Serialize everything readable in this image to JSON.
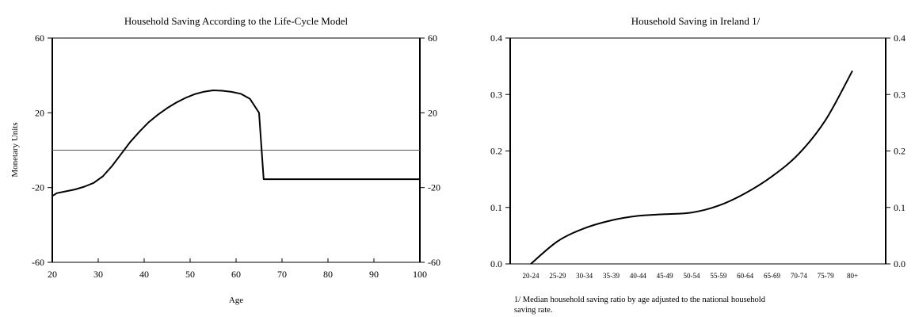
{
  "chart_data": [
    {
      "type": "line",
      "title": "Household Saving According to the Life-Cycle Model",
      "xlabel": "Age",
      "ylabel": "Monetary Units",
      "xlim": [
        20,
        100
      ],
      "ylim": [
        -60,
        60
      ],
      "x_ticks": [
        20,
        30,
        40,
        50,
        60,
        70,
        80,
        90,
        100
      ],
      "y_ticks": [
        -60,
        -20,
        20,
        60
      ],
      "y_tick_labels": [
        "-60",
        "-20",
        "20",
        "60"
      ],
      "reference_line_y": 0,
      "grid": false,
      "series": [
        {
          "x": [
            20,
            21,
            23,
            25,
            27,
            29,
            31,
            33,
            35,
            37,
            39,
            41,
            43,
            45,
            47,
            49,
            51,
            53,
            55,
            57,
            59,
            61,
            63,
            65,
            66,
            67,
            70,
            80,
            90,
            100
          ],
          "y": [
            -24.5,
            -23,
            -22,
            -21,
            -19.5,
            -17.5,
            -14,
            -8.5,
            -2,
            4.5,
            10,
            15,
            19,
            22.5,
            25.5,
            28,
            30,
            31.3,
            32,
            31.8,
            31.2,
            30.2,
            27.5,
            20,
            -15.5,
            -15.5,
            -15.5,
            -15.5,
            -15.5,
            -15.5
          ]
        }
      ]
    },
    {
      "type": "line",
      "title": "Household Saving in Ireland 1/",
      "xlabel": "",
      "ylabel": "",
      "categories": [
        "20-24",
        "25-29",
        "30-34",
        "35-39",
        "40-44",
        "45-49",
        "50-54",
        "55-59",
        "60-64",
        "65-69",
        "70-74",
        "75-79",
        "80+"
      ],
      "ylim": [
        0,
        0.4
      ],
      "y_ticks": [
        0,
        0.1,
        0.2,
        0.3,
        0.4
      ],
      "y_tick_labels": [
        "0.0",
        "0.1",
        "0.2",
        "0.3",
        "0.4"
      ],
      "grid": false,
      "series": [
        {
          "values": [
            0.0,
            0.04,
            0.063,
            0.077,
            0.085,
            0.088,
            0.091,
            0.103,
            0.125,
            0.155,
            0.195,
            0.255,
            0.342
          ]
        }
      ],
      "footnote": "1/ Median household saving ratio by age adjusted to the national household saving rate."
    }
  ]
}
